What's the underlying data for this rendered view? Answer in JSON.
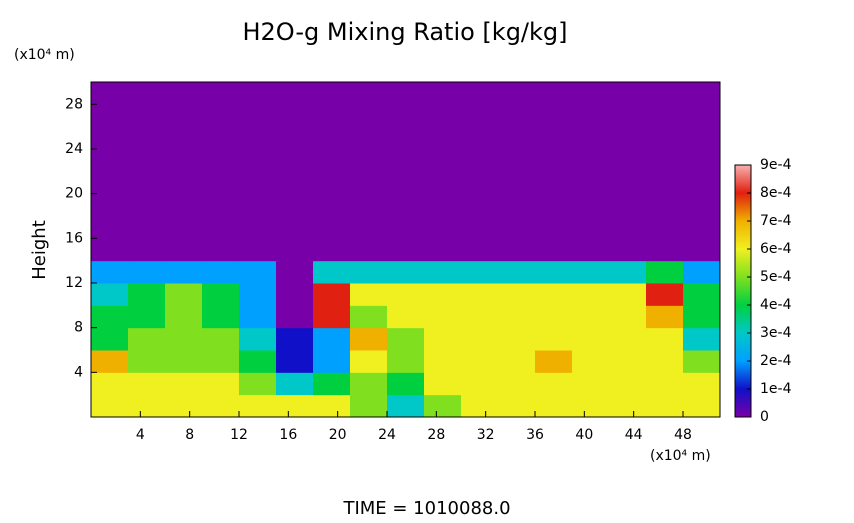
{
  "chart_data": {
    "type": "heatmap",
    "title": "H2O-g Mixing Ratio [kg/kg]",
    "ylabel": "Height",
    "y_unit": "(x10⁴ m)",
    "x_unit": "(x10⁴ m)",
    "footer": "TIME = 1010088.0",
    "x": [
      1.5,
      4.5,
      7.5,
      10.5,
      13.5,
      16.5,
      19.5,
      22.5,
      25.5,
      28.5,
      31.5,
      34.5,
      37.5,
      40.5,
      43.5,
      46.5,
      49.5
    ],
    "y": [
      1,
      3,
      5,
      7,
      9,
      11,
      13,
      15,
      17,
      19,
      21,
      23,
      25,
      27,
      29
    ],
    "z": [
      [
        0.0006,
        0.0006,
        0.0006,
        0.0006,
        0.0006,
        0.0006,
        0.0006,
        0.0005,
        0.0003,
        0.0005,
        0.0006,
        0.0006,
        0.0006,
        0.0006,
        0.0006,
        0.0006,
        0.0006
      ],
      [
        0.0006,
        0.0006,
        0.0006,
        0.0006,
        0.0005,
        0.0003,
        0.0004,
        0.0005,
        0.0004,
        0.0006,
        0.0006,
        0.0006,
        0.0006,
        0.0006,
        0.0006,
        0.0006,
        0.0006
      ],
      [
        0.0007,
        0.0005,
        0.0005,
        0.0005,
        0.0004,
        0.0001,
        0.0002,
        0.0006,
        0.0005,
        0.0006,
        0.0006,
        0.0006,
        0.0007,
        0.0006,
        0.0006,
        0.0006,
        0.0005
      ],
      [
        0.0004,
        0.0005,
        0.0005,
        0.0005,
        0.0003,
        0.0001,
        0.0002,
        0.0007,
        0.0005,
        0.0006,
        0.0006,
        0.0006,
        0.0006,
        0.0006,
        0.0006,
        0.0006,
        0.0003
      ],
      [
        0.0004,
        0.0004,
        0.0005,
        0.0004,
        0.0002,
        0,
        0.0008,
        0.0005,
        0.0006,
        0.0006,
        0.0006,
        0.0006,
        0.0006,
        0.0006,
        0.0006,
        0.0007,
        0.0004
      ],
      [
        0.0003,
        0.0004,
        0.0005,
        0.0004,
        0.0002,
        0,
        0.0008,
        0.0006,
        0.0006,
        0.0006,
        0.0006,
        0.0006,
        0.0006,
        0.0006,
        0.0006,
        0.0008,
        0.0004
      ],
      [
        0.0002,
        0.0002,
        0.0002,
        0.0002,
        0.0002,
        0,
        0.0003,
        0.0003,
        0.0003,
        0.0003,
        0.0003,
        0.0003,
        0.0003,
        0.0003,
        0.0003,
        0.0004,
        0.0002
      ],
      [
        0,
        0,
        0,
        0,
        0,
        0,
        0,
        0,
        0,
        0,
        0,
        0,
        0,
        0,
        0,
        0,
        0
      ],
      [
        0,
        0,
        0,
        0,
        0,
        0,
        0,
        0,
        0,
        0,
        0,
        0,
        0,
        0,
        0,
        0,
        0
      ],
      [
        0,
        0,
        0,
        0,
        0,
        0,
        0,
        0,
        0,
        0,
        0,
        0,
        0,
        0,
        0,
        0,
        0
      ],
      [
        0,
        0,
        0,
        0,
        0,
        0,
        0,
        0,
        0,
        0,
        0,
        0,
        0,
        0,
        0,
        0,
        0
      ],
      [
        0,
        0,
        0,
        0,
        0,
        0,
        0,
        0,
        0,
        0,
        0,
        0,
        0,
        0,
        0,
        0,
        0
      ],
      [
        0,
        0,
        0,
        0,
        0,
        0,
        0,
        0,
        0,
        0,
        0,
        0,
        0,
        0,
        0,
        0,
        0
      ],
      [
        0,
        0,
        0,
        0,
        0,
        0,
        0,
        0,
        0,
        0,
        0,
        0,
        0,
        0,
        0,
        0,
        0
      ],
      [
        0,
        0,
        0,
        0,
        0,
        0,
        0,
        0,
        0,
        0,
        0,
        0,
        0,
        0,
        0,
        0,
        0
      ]
    ],
    "xlim": [
      0,
      51
    ],
    "ylim": [
      0,
      30
    ],
    "xticks": [
      4,
      8,
      12,
      16,
      20,
      24,
      28,
      32,
      36,
      40,
      44,
      48
    ],
    "yticks": [
      4,
      8,
      12,
      16,
      20,
      24,
      28
    ],
    "clim": [
      0,
      0.0009
    ],
    "cticks": [
      0,
      {
        "value": 0.0001,
        "label": "1e-4"
      },
      {
        "value": 0.0002,
        "label": "2e-4"
      },
      {
        "value": 0.0003,
        "label": "3e-4"
      },
      {
        "value": 0.0004,
        "label": "4e-4"
      },
      {
        "value": 0.0005,
        "label": "5e-4"
      },
      {
        "value": 0.0006,
        "label": "6e-4"
      },
      {
        "value": 0.0007,
        "label": "7e-4"
      },
      {
        "value": 0.0008,
        "label": "8e-4"
      },
      {
        "value": 0.0009,
        "label": "9e-4"
      }
    ],
    "colors": [
      "#7800a8",
      "#1010c8",
      "#00a0ff",
      "#00c8c8",
      "#00d040",
      "#80e020",
      "#f0f020",
      "#f0b000",
      "#e02010",
      "#f8b0b0"
    ]
  }
}
